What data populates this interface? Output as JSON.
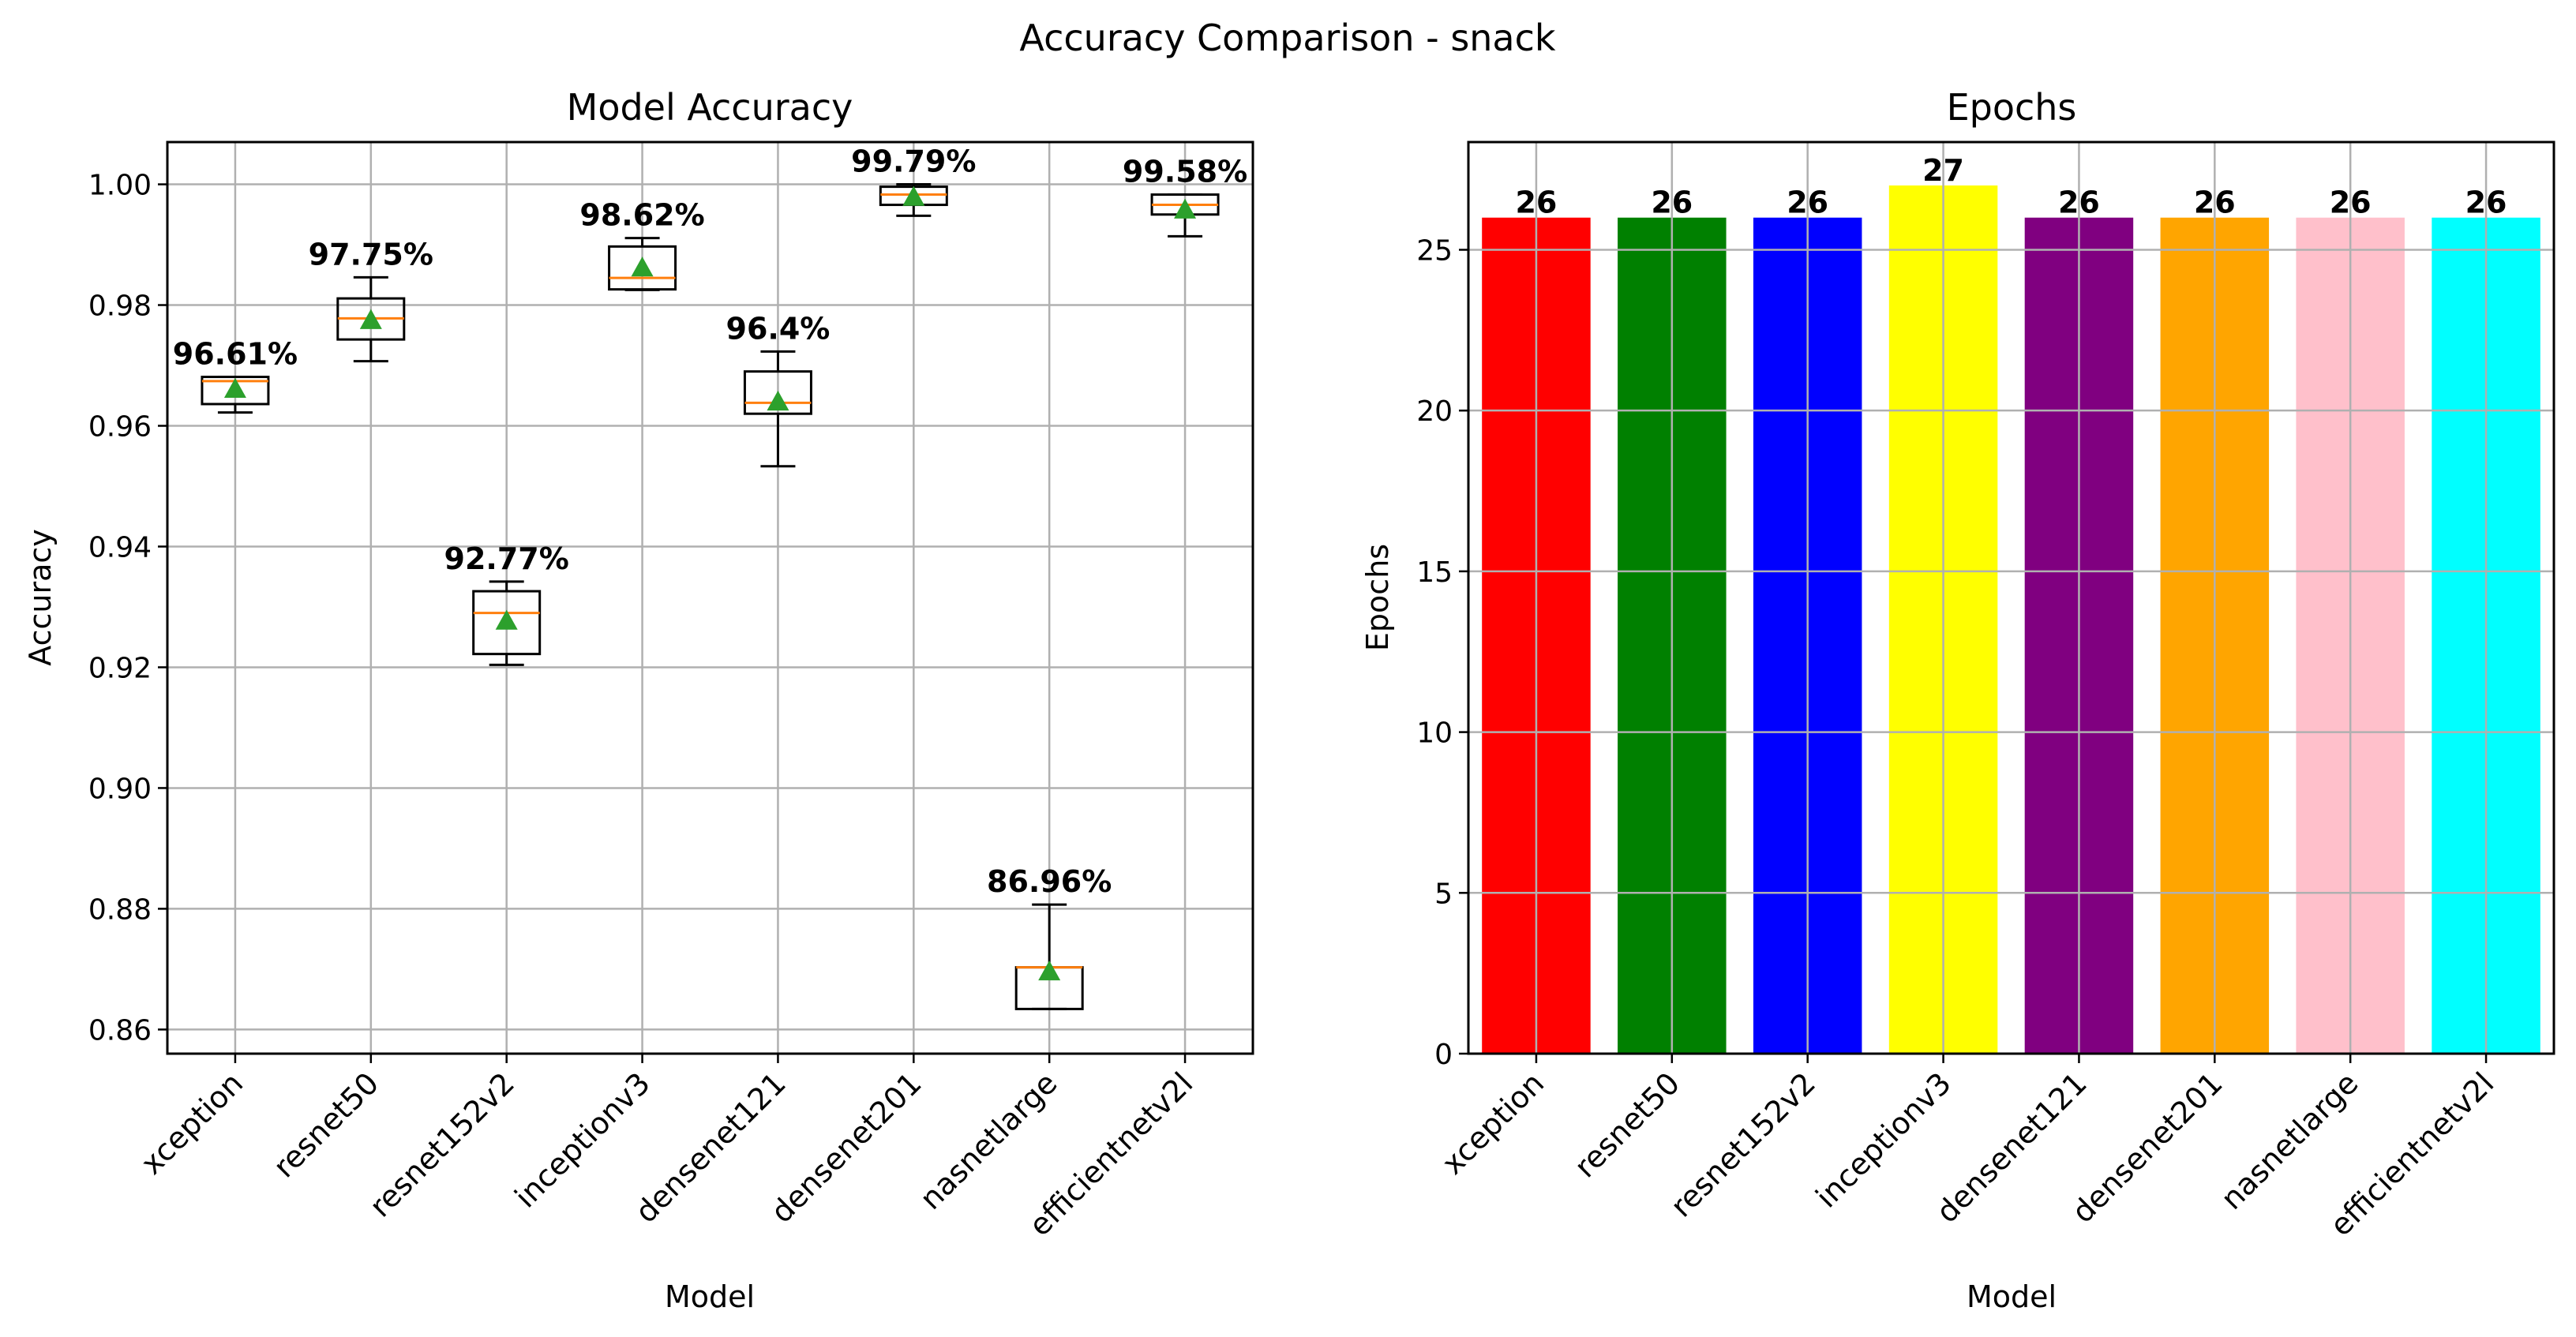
{
  "figure": {
    "suptitle": "Accuracy Comparison - snack"
  },
  "chart_data": [
    {
      "type": "box",
      "title": "Model Accuracy",
      "xlabel": "Model",
      "ylabel": "Accuracy",
      "categories": [
        "xception",
        "resnet50",
        "resnet152v2",
        "inceptionv3",
        "densenet121",
        "densenet201",
        "nasnetlarge",
        "efficientnetv2l"
      ],
      "ylim": [
        0.856,
        1.007
      ],
      "yticks": [
        0.86,
        0.88,
        0.9,
        0.92,
        0.94,
        0.96,
        0.98,
        1.0
      ],
      "ytick_labels": [
        "0.86",
        "0.88",
        "0.90",
        "0.92",
        "0.94",
        "0.96",
        "0.98",
        "1.00"
      ],
      "grid": true,
      "boxes": [
        {
          "whislo": 0.9622,
          "q1": 0.9636,
          "med": 0.9674,
          "q3": 0.9681,
          "whishi": 0.9681,
          "mean": 0.9661
        },
        {
          "whislo": 0.9707,
          "q1": 0.9743,
          "med": 0.9778,
          "q3": 0.9811,
          "whishi": 0.9846,
          "mean": 0.9775
        },
        {
          "whislo": 0.9204,
          "q1": 0.9222,
          "med": 0.929,
          "q3": 0.9326,
          "whishi": 0.9342,
          "mean": 0.9277
        },
        {
          "whislo": 0.9825,
          "q1": 0.9826,
          "med": 0.9845,
          "q3": 0.9897,
          "whishi": 0.9911,
          "mean": 0.9862
        },
        {
          "whislo": 0.9533,
          "q1": 0.962,
          "med": 0.9638,
          "q3": 0.969,
          "whishi": 0.9723,
          "mean": 0.964
        },
        {
          "whislo": 0.9948,
          "q1": 0.9966,
          "med": 0.9983,
          "q3": 0.9996,
          "whishi": 1.0,
          "mean": 0.9979
        },
        {
          "whislo": 0.8634,
          "q1": 0.8634,
          "med": 0.8703,
          "q3": 0.8703,
          "whishi": 0.8807,
          "mean": 0.8696
        },
        {
          "whislo": 0.9914,
          "q1": 0.995,
          "med": 0.9966,
          "q3": 0.9983,
          "whishi": 0.9983,
          "mean": 0.9958
        }
      ],
      "data_labels": [
        "96.61%",
        "97.75%",
        "92.77%",
        "98.62%",
        "96.4%",
        "99.79%",
        "86.96%",
        "99.58%"
      ],
      "colors": {
        "box": "#000000",
        "median": "#ff7f0e",
        "mean": "#2ca02c",
        "grid": "#b0b0b0"
      }
    },
    {
      "type": "bar",
      "title": "Epochs",
      "xlabel": "Model",
      "ylabel": "Epochs",
      "categories": [
        "xception",
        "resnet50",
        "resnet152v2",
        "inceptionv3",
        "densenet121",
        "densenet201",
        "nasnetlarge",
        "efficientnetv2l"
      ],
      "values": [
        26,
        26,
        26,
        27,
        26,
        26,
        26,
        26
      ],
      "data_labels": [
        "26",
        "26",
        "26",
        "27",
        "26",
        "26",
        "26",
        "26"
      ],
      "colors": [
        "#ff0000",
        "#008000",
        "#0000ff",
        "#ffff00",
        "#800080",
        "#ffa500",
        "#ffc0cb",
        "#00ffff"
      ],
      "ylim": [
        0,
        28.35
      ],
      "yticks": [
        0,
        5,
        10,
        15,
        20,
        25
      ],
      "ytick_labels": [
        "0",
        "5",
        "10",
        "15",
        "20",
        "25"
      ],
      "grid": true
    }
  ]
}
